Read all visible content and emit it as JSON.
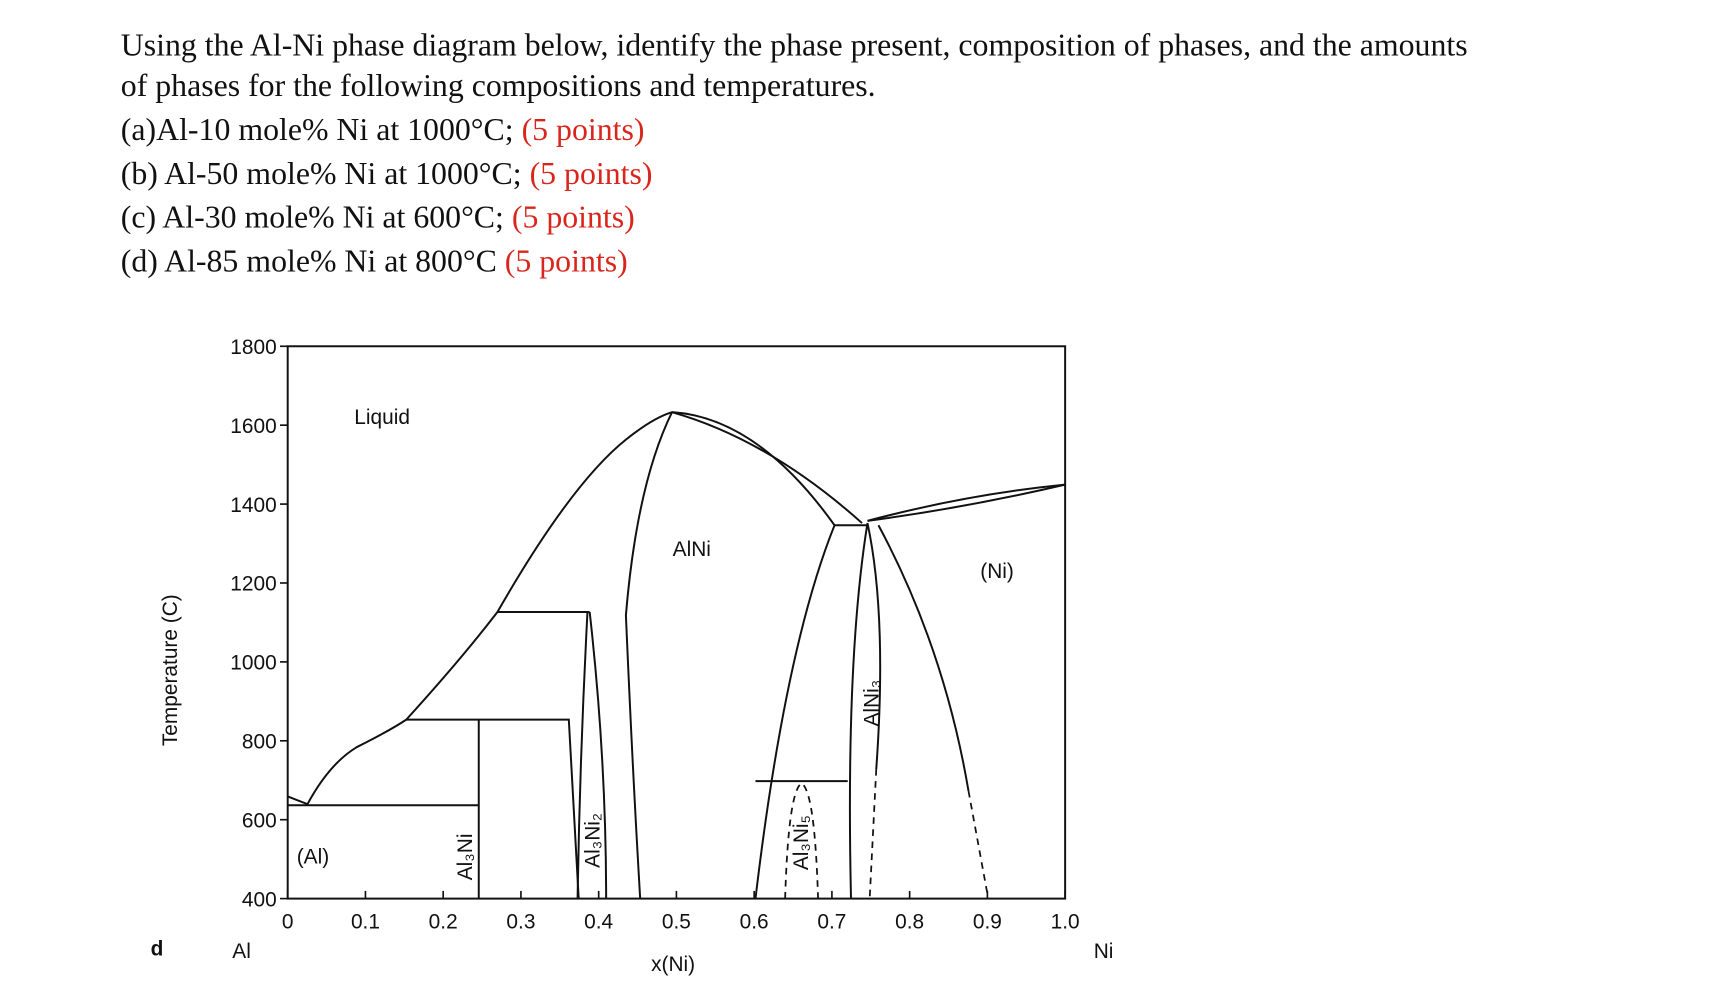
{
  "question": {
    "intro": [
      "Using the Al-Ni phase diagram below, identify the phase present, composition of phases, and the amounts",
      "of phases for the following compositions and temperatures."
    ],
    "parts": [
      {
        "text": "(a)Al-10 mole% Ni at 1000°C;",
        "points": "(5 points)"
      },
      {
        "text": "(b) Al-50 mole% Ni at 1000°C;",
        "points": "(5 points)"
      },
      {
        "text": "(c) Al-30 mole% Ni at 600°C;",
        "points": "(5 points)"
      },
      {
        "text": "(d) Al-85 mole% Ni at 800°C",
        "points": "(5 points)"
      }
    ]
  },
  "figure": {
    "panel": "d",
    "y_label": "Temperature (C)",
    "x_label": "x(Ni)",
    "left_element": "Al",
    "right_element": "Ni",
    "xlim": [
      0,
      1
    ],
    "ylim": [
      400,
      1800
    ],
    "xticks": [
      0,
      0.1,
      0.2,
      0.3,
      0.4,
      0.5,
      0.6,
      0.7,
      0.8,
      0.9,
      {
        "value": 1,
        "label": "1.0"
      }
    ],
    "yticks": [
      400,
      600,
      800,
      1000,
      1200,
      1400,
      1600,
      1800
    ],
    "phases": [
      "Liquid",
      "AlNi",
      "(Ni)",
      "(Al)",
      "Al₃Ni",
      "Al₃Ni₂",
      "Al₃Ni₅",
      "AlNi₃"
    ]
  }
}
